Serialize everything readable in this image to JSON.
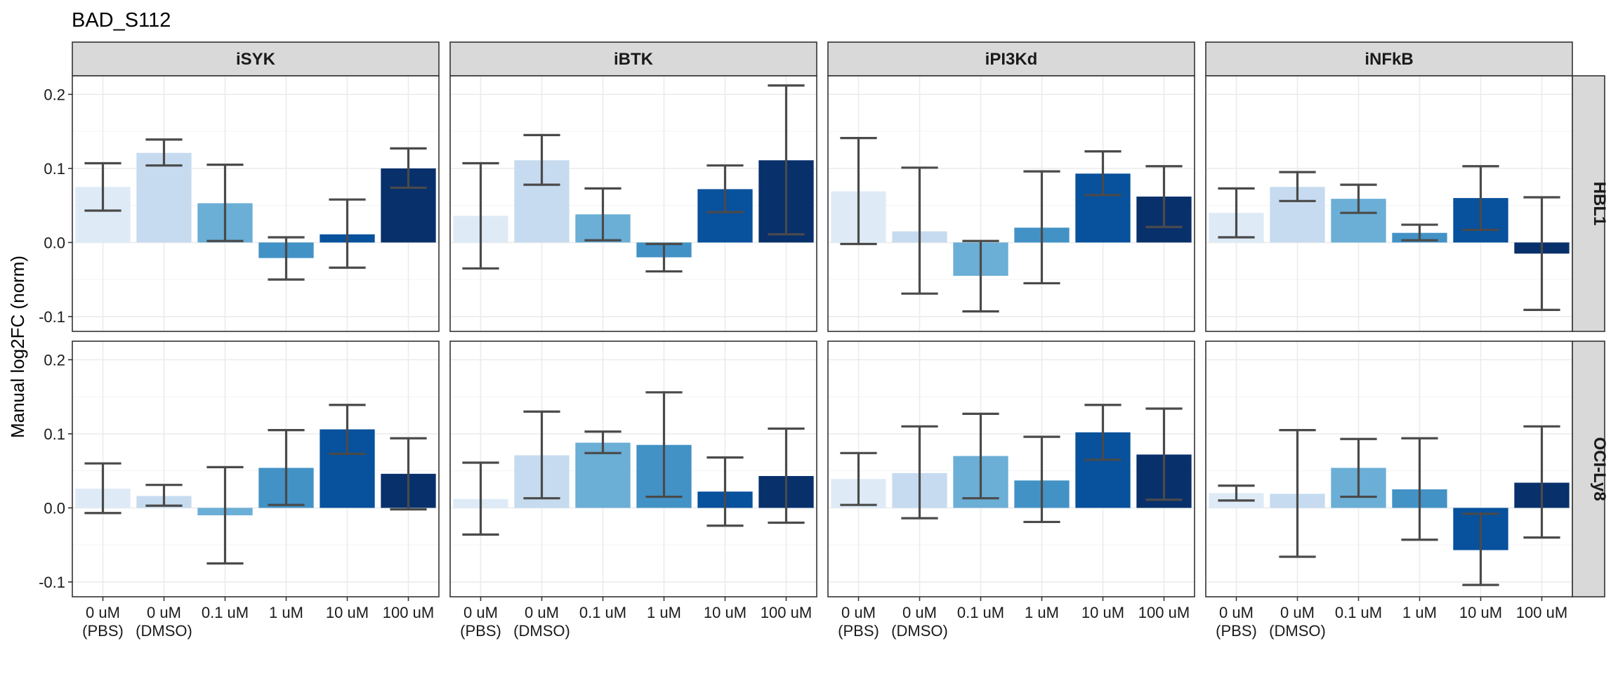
{
  "title": "BAD_S112",
  "chart_data": {
    "type": "bar",
    "title": "BAD_S112",
    "xlabel": "",
    "ylabel": "Manual log2FC (norm)",
    "ylim": [
      -0.12,
      0.225
    ],
    "yticks": [
      -0.1,
      0.0,
      0.1,
      0.2
    ],
    "ytick_labels": [
      "-0.1",
      "0.0",
      "0.1",
      "0.2"
    ],
    "grid": true,
    "legend": "none",
    "categories": [
      "0 uM (PBS)",
      "0 uM (DMSO)",
      "0.1 uM",
      "1 uM",
      "10 uM",
      "100 uM"
    ],
    "category_labels": [
      [
        "0 uM",
        "(PBS)"
      ],
      [
        "0 uM",
        "(DMSO)"
      ],
      [
        "0.1 uM"
      ],
      [
        "1 uM"
      ],
      [
        "10 uM"
      ],
      [
        "100 uM"
      ]
    ],
    "category_colors": [
      "#deebf7",
      "#c6dbef",
      "#6baed6",
      "#4292c6",
      "#08519c",
      "#08306b"
    ],
    "facet_columns": [
      "iSYK",
      "iBTK",
      "iPI3Kd",
      "iNFkB"
    ],
    "facet_rows": [
      "HBL1",
      "OCI-Ly8"
    ],
    "panels": [
      {
        "col": "iSYK",
        "row": "HBL1",
        "values": [
          0.075,
          0.121,
          0.053,
          -0.021,
          0.011,
          0.1
        ],
        "err_low": [
          0.043,
          0.104,
          0.002,
          -0.05,
          -0.034,
          0.074
        ],
        "err_high": [
          0.107,
          0.139,
          0.105,
          0.007,
          0.058,
          0.127
        ]
      },
      {
        "col": "iBTK",
        "row": "HBL1",
        "values": [
          0.036,
          0.111,
          0.038,
          -0.02,
          0.072,
          0.111
        ],
        "err_low": [
          -0.035,
          0.078,
          0.003,
          -0.039,
          0.041,
          0.011
        ],
        "err_high": [
          0.107,
          0.145,
          0.073,
          -0.002,
          0.104,
          0.212
        ]
      },
      {
        "col": "iPI3Kd",
        "row": "HBL1",
        "values": [
          0.069,
          0.015,
          -0.045,
          0.02,
          0.093,
          0.062
        ],
        "err_low": [
          -0.002,
          -0.069,
          -0.093,
          -0.055,
          0.064,
          0.021
        ],
        "err_high": [
          0.141,
          0.101,
          0.002,
          0.096,
          0.123,
          0.103
        ]
      },
      {
        "col": "iNFkB",
        "row": "HBL1",
        "values": [
          0.04,
          0.075,
          0.059,
          0.013,
          0.06,
          -0.015
        ],
        "err_low": [
          0.007,
          0.056,
          0.04,
          0.003,
          0.017,
          -0.091
        ],
        "err_high": [
          0.073,
          0.095,
          0.078,
          0.024,
          0.103,
          0.061
        ]
      },
      {
        "col": "iSYK",
        "row": "OCI-Ly8",
        "values": [
          0.026,
          0.016,
          -0.01,
          0.054,
          0.106,
          0.046
        ],
        "err_low": [
          -0.007,
          0.003,
          -0.075,
          0.004,
          0.073,
          -0.002
        ],
        "err_high": [
          0.06,
          0.031,
          0.055,
          0.105,
          0.139,
          0.094
        ]
      },
      {
        "col": "iBTK",
        "row": "OCI-Ly8",
        "values": [
          0.012,
          0.071,
          0.088,
          0.085,
          0.022,
          0.043
        ],
        "err_low": [
          -0.036,
          0.013,
          0.074,
          0.015,
          -0.024,
          -0.02
        ],
        "err_high": [
          0.061,
          0.13,
          0.103,
          0.156,
          0.068,
          0.107
        ]
      },
      {
        "col": "iPI3Kd",
        "row": "OCI-Ly8",
        "values": [
          0.039,
          0.047,
          0.07,
          0.037,
          0.102,
          0.072
        ],
        "err_low": [
          0.004,
          -0.014,
          0.013,
          -0.019,
          0.065,
          0.011
        ],
        "err_high": [
          0.074,
          0.11,
          0.127,
          0.096,
          0.139,
          0.134
        ]
      },
      {
        "col": "iNFkB",
        "row": "OCI-Ly8",
        "values": [
          0.02,
          0.019,
          0.054,
          0.025,
          -0.057,
          0.034
        ],
        "err_low": [
          0.01,
          -0.066,
          0.015,
          -0.043,
          -0.104,
          -0.04
        ],
        "err_high": [
          0.03,
          0.105,
          0.093,
          0.094,
          -0.008,
          0.11
        ]
      }
    ]
  }
}
